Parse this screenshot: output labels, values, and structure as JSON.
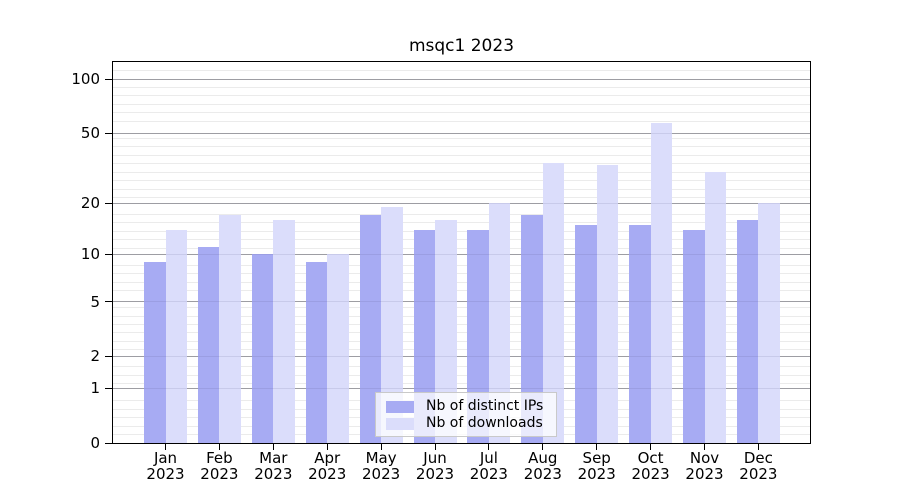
{
  "chart_data": {
    "type": "bar",
    "title": "msqc1 2023",
    "categories": [
      "Jan",
      "Feb",
      "Mar",
      "Apr",
      "May",
      "Jun",
      "Jul",
      "Aug",
      "Sep",
      "Oct",
      "Nov",
      "Dec"
    ],
    "x_tick_second_line": "2023",
    "series": [
      {
        "name": "Nb of distinct IPs",
        "color": "#a7abf3",
        "values": [
          9,
          11,
          10,
          9,
          17,
          14,
          14,
          17,
          15,
          15,
          14,
          16
        ]
      },
      {
        "name": "Nb of downloads",
        "color": "#dbddfb",
        "values": [
          14,
          17,
          16,
          10,
          19,
          16,
          20,
          34,
          33,
          57,
          30,
          20
        ]
      }
    ],
    "yscale": "log1p",
    "y_ticks": [
      100,
      50,
      20,
      10,
      5,
      2,
      1,
      0
    ],
    "ylim": [
      0,
      125
    ],
    "grid": true,
    "legend_position": "bottom-center",
    "frame_color": "#000000",
    "major_grid_color": "#a9a9a9",
    "minor_grid_color": "#ebebeb"
  }
}
